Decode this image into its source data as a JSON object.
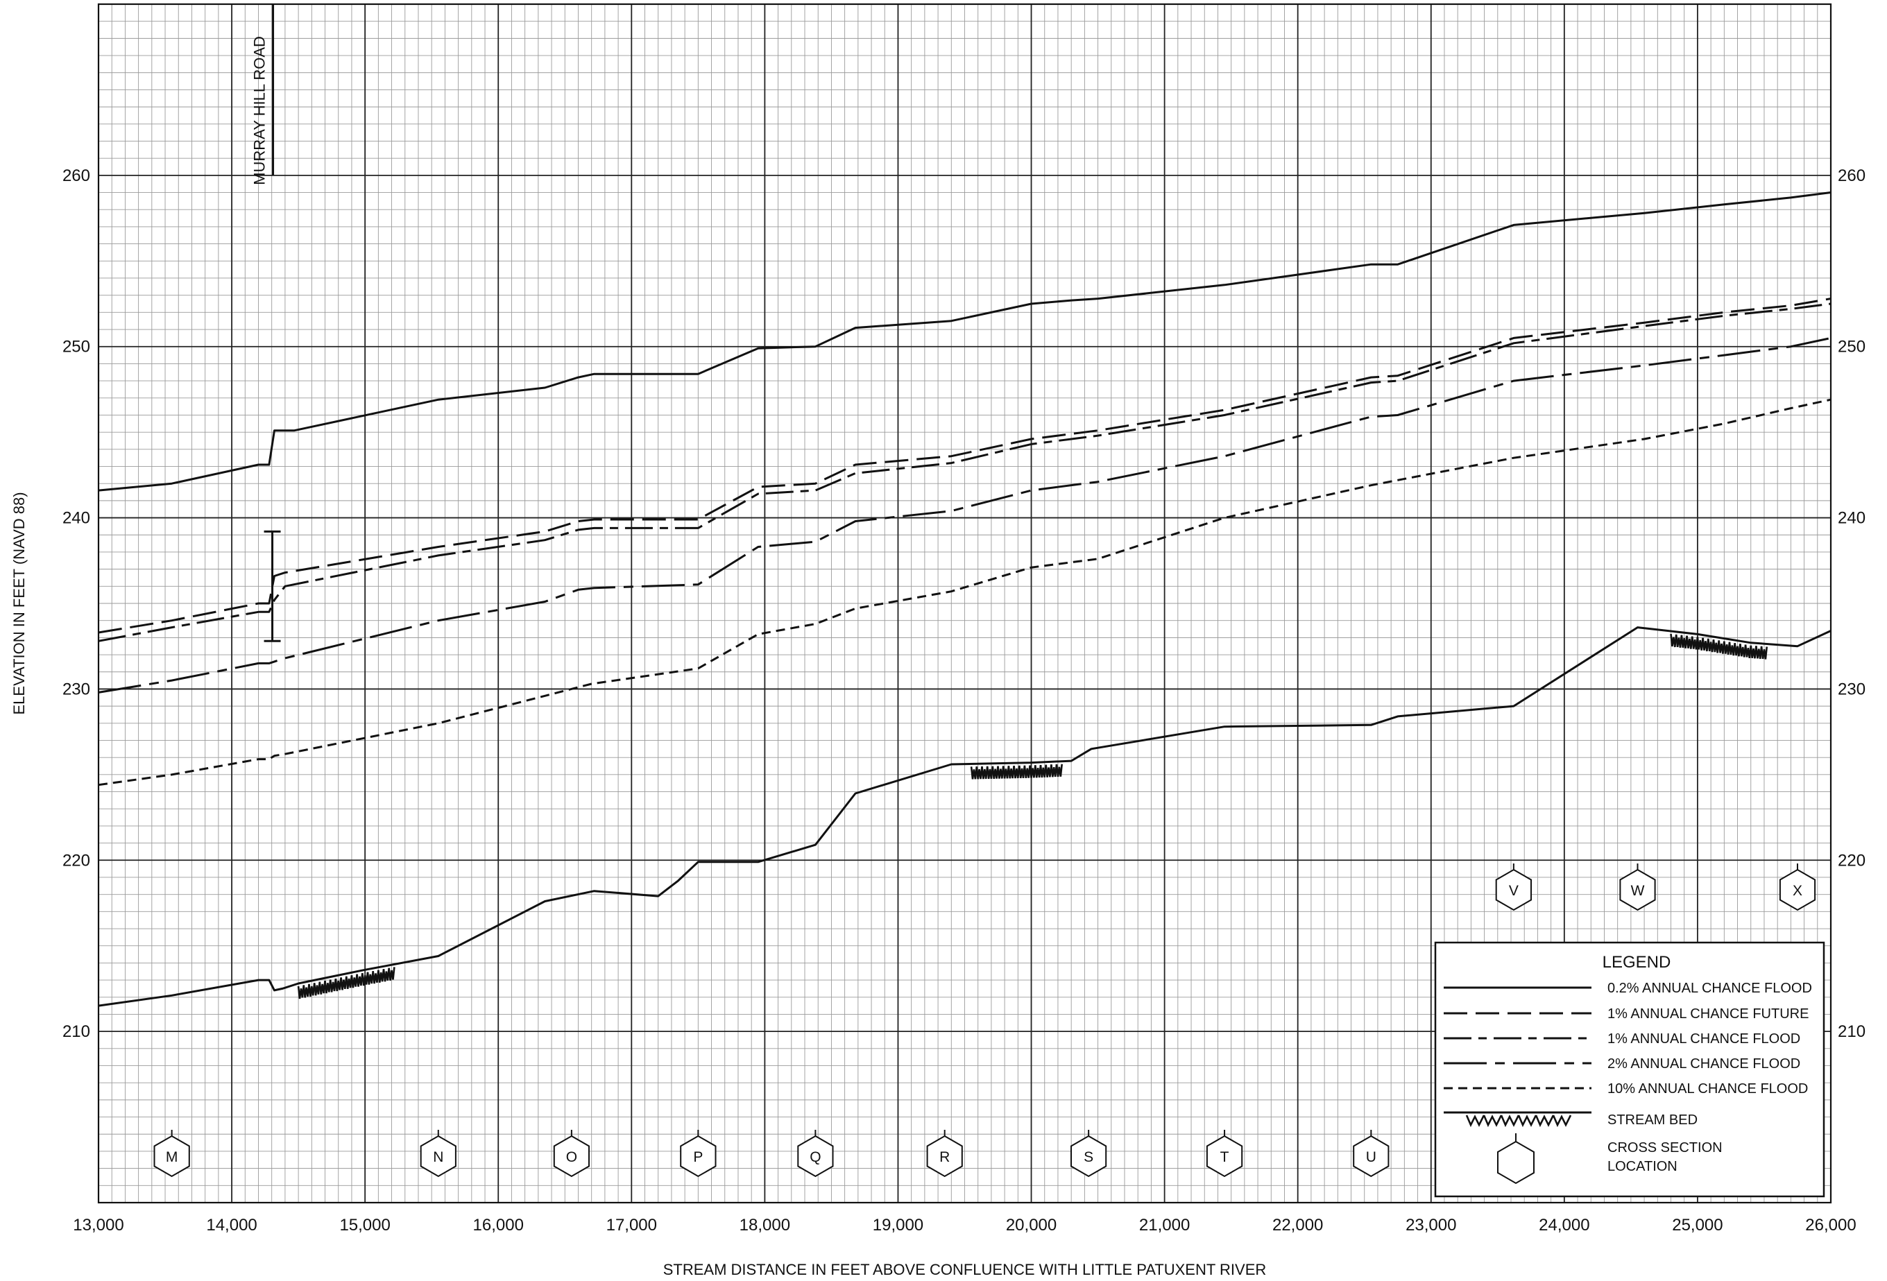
{
  "chart_data": {
    "type": "line",
    "xlabel": "STREAM DISTANCE IN FEET ABOVE CONFLUENCE WITH LITTLE PATUXENT RIVER",
    "ylabel": "ELEVATION IN FEET (NAVD 88)",
    "xlim": [
      13000,
      26000
    ],
    "ylim": [
      200,
      270
    ],
    "x_ticks": [
      13000,
      14000,
      15000,
      16000,
      17000,
      18000,
      19000,
      20000,
      21000,
      22000,
      23000,
      24000,
      25000,
      26000
    ],
    "x_tick_labels": [
      "13,000",
      "14,000",
      "15,000",
      "16,000",
      "17,000",
      "18,000",
      "19,000",
      "20,000",
      "21,000",
      "22,000",
      "23,000",
      "24,000",
      "25,000",
      "26,000"
    ],
    "y_ticks": [
      210,
      220,
      230,
      240,
      250,
      260
    ],
    "y_tick_labels": [
      "210",
      "220",
      "230",
      "240",
      "250",
      "260"
    ],
    "grid": true,
    "legend_position": "bottom-right",
    "legend": {
      "title": "LEGEND",
      "entries": [
        {
          "label": "0.2% ANNUAL CHANCE FLOOD",
          "style": "solid"
        },
        {
          "label": "1% ANNUAL CHANCE FUTURE",
          "style": "long-dash"
        },
        {
          "label": "1% ANNUAL CHANCE FLOOD",
          "style": "dash-dot"
        },
        {
          "label": "2% ANNUAL CHANCE FLOOD",
          "style": "long-dash-dot"
        },
        {
          "label": "10% ANNUAL CHANCE FLOOD",
          "style": "short-dash"
        },
        {
          "label": "STREAM BED",
          "style": "hatch"
        },
        {
          "label": "CROSS SECTION LOCATION",
          "style": "hexagon"
        }
      ]
    },
    "series": [
      {
        "name": "0.2% ANNUAL CHANCE FLOOD",
        "style": "solid",
        "x": [
          13000,
          13550,
          14200,
          14280,
          14320,
          14470,
          15550,
          16350,
          16600,
          16720,
          17500,
          17950,
          18380,
          18680,
          19400,
          20000,
          20300,
          20500,
          21450,
          22550,
          22750,
          23620,
          24600,
          25200,
          25700,
          26000
        ],
        "y": [
          241.6,
          242.0,
          243.1,
          243.1,
          245.1,
          245.1,
          246.9,
          247.6,
          248.2,
          248.4,
          248.4,
          249.9,
          250.0,
          251.1,
          251.5,
          252.5,
          252.7,
          252.8,
          253.6,
          254.8,
          254.8,
          257.1,
          257.8,
          258.3,
          258.7,
          259.0
        ]
      },
      {
        "name": "1% ANNUAL CHANCE FUTURE",
        "style": "long-dash",
        "x": [
          13000,
          13550,
          14200,
          14280,
          14320,
          14400,
          15550,
          16350,
          16600,
          16720,
          17500,
          17950,
          18380,
          18680,
          19400,
          20000,
          20500,
          21450,
          22550,
          22750,
          23620,
          24600,
          25200,
          25700,
          26000
        ],
        "y": [
          233.3,
          234.0,
          235.0,
          235.0,
          236.6,
          236.8,
          238.3,
          239.2,
          239.8,
          239.9,
          239.9,
          241.8,
          242.0,
          243.1,
          243.6,
          244.6,
          245.1,
          246.3,
          248.2,
          248.3,
          250.5,
          251.4,
          252.0,
          252.4,
          252.8
        ]
      },
      {
        "name": "1% ANNUAL CHANCE FLOOD",
        "style": "dash-dot",
        "x": [
          13000,
          13550,
          14200,
          14280,
          14320,
          14400,
          15550,
          16350,
          16600,
          16720,
          17500,
          17950,
          18380,
          18680,
          19400,
          20000,
          20500,
          21450,
          22550,
          22750,
          23620,
          24600,
          25200,
          25700,
          26000
        ],
        "y": [
          232.8,
          233.6,
          234.5,
          234.5,
          235.2,
          236.0,
          237.8,
          238.7,
          239.3,
          239.4,
          239.4,
          241.4,
          241.6,
          242.6,
          243.2,
          244.3,
          244.8,
          246.0,
          247.9,
          248.0,
          250.2,
          251.2,
          251.8,
          252.2,
          252.5
        ]
      },
      {
        "name": "2% ANNUAL CHANCE FLOOD",
        "style": "long-dash-dot",
        "x": [
          13000,
          13550,
          14200,
          14280,
          14320,
          14400,
          15550,
          16350,
          16600,
          16720,
          17500,
          17950,
          18380,
          18680,
          19400,
          20000,
          20500,
          21450,
          22550,
          22750,
          23620,
          24600,
          25200,
          25700,
          26000
        ],
        "y": [
          229.8,
          230.5,
          231.5,
          231.5,
          231.6,
          231.8,
          234.0,
          235.1,
          235.8,
          235.9,
          236.1,
          238.3,
          238.6,
          239.8,
          240.4,
          241.6,
          242.1,
          243.6,
          245.9,
          246.0,
          248.0,
          248.9,
          249.5,
          250.0,
          250.5
        ]
      },
      {
        "name": "10% ANNUAL CHANCE FLOOD",
        "style": "short-dash",
        "x": [
          13000,
          13550,
          14200,
          14280,
          14320,
          14400,
          15550,
          16350,
          16700,
          17500,
          17950,
          18380,
          18680,
          19400,
          20000,
          20500,
          21450,
          22550,
          22750,
          23620,
          24600,
          25200,
          25700,
          26000
        ],
        "y": [
          224.4,
          225.0,
          225.9,
          225.9,
          226.1,
          226.2,
          228.0,
          229.6,
          230.3,
          231.2,
          233.2,
          233.8,
          234.7,
          235.7,
          237.1,
          237.6,
          240.0,
          241.9,
          242.2,
          243.5,
          244.6,
          245.5,
          246.4,
          246.9
        ]
      },
      {
        "name": "STREAM BED",
        "style": "bed",
        "x": [
          13000,
          13550,
          14200,
          14280,
          14320,
          14380,
          14500,
          15000,
          15550,
          16350,
          16720,
          17200,
          17350,
          17500,
          17950,
          18380,
          18680,
          19400,
          20000,
          20300,
          20450,
          21450,
          22550,
          22750,
          23620,
          24550,
          25000,
          25400,
          25750,
          26000
        ],
        "y": [
          211.5,
          212.1,
          213.0,
          213.0,
          212.4,
          212.5,
          212.8,
          213.6,
          214.4,
          217.6,
          218.2,
          217.9,
          218.8,
          219.9,
          219.9,
          220.9,
          223.9,
          225.6,
          225.7,
          225.8,
          226.5,
          227.8,
          227.9,
          228.4,
          229.0,
          233.6,
          233.2,
          232.7,
          232.5,
          233.4
        ]
      }
    ],
    "stream_bed_hatch_ranges": [
      [
        14500,
        15200
      ],
      [
        19550,
        20200
      ],
      [
        24800,
        25500
      ]
    ],
    "cross_sections": [
      {
        "letter": "M",
        "x": 13550,
        "row": "bottom"
      },
      {
        "letter": "N",
        "x": 15550,
        "row": "bottom"
      },
      {
        "letter": "O",
        "x": 16550,
        "row": "bottom"
      },
      {
        "letter": "P",
        "x": 17500,
        "row": "bottom"
      },
      {
        "letter": "Q",
        "x": 18380,
        "row": "bottom"
      },
      {
        "letter": "R",
        "x": 19350,
        "row": "bottom"
      },
      {
        "letter": "S",
        "x": 20430,
        "row": "bottom"
      },
      {
        "letter": "T",
        "x": 21450,
        "row": "bottom"
      },
      {
        "letter": "U",
        "x": 22550,
        "row": "bottom"
      },
      {
        "letter": "V",
        "x": 23620,
        "row": "top"
      },
      {
        "letter": "W",
        "x": 24550,
        "row": "top"
      },
      {
        "letter": "X",
        "x": 25750,
        "row": "top"
      }
    ],
    "annotations": [
      {
        "text": "MURRAY HILL ROAD",
        "x": 14320,
        "y_bottom": 260,
        "y_top": 270
      }
    ],
    "structure": {
      "x": 14320,
      "y_low": 232.8,
      "y_high": 239.2
    }
  }
}
